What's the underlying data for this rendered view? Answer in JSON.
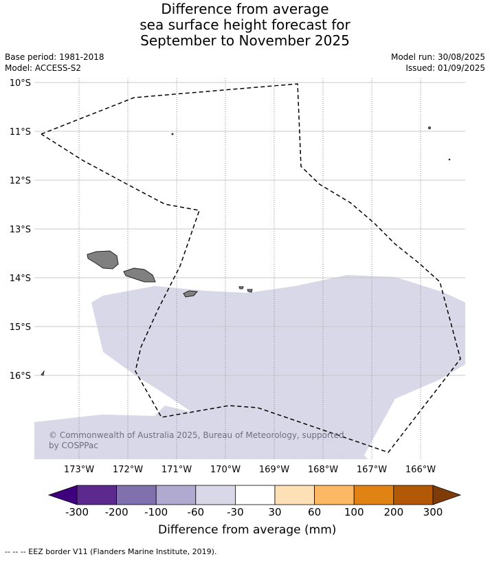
{
  "title": {
    "line1": "Difference from average",
    "line2": "sea surface height forecast for",
    "line3": "September to November 2025"
  },
  "meta_left": {
    "base_period": "Base period: 1981-2018",
    "model": "Model: ACCESS-S2"
  },
  "meta_right": {
    "model_run": "Model run: 30/08/2025",
    "issued": "Issued: 01/09/2025"
  },
  "map": {
    "lat_labels": [
      "10°S",
      "11°S",
      "12°S",
      "13°S",
      "14°S",
      "15°S",
      "16°S"
    ],
    "lon_labels": [
      "173°W",
      "172°W",
      "171°W",
      "170°W",
      "169°W",
      "168°W",
      "167°W",
      "166°W"
    ],
    "anomaly_color": "#d8d8e8",
    "land_color": "#808080",
    "copyright": "© Commonwealth of Australia 2025, Bureau of Meteorology, supported by COSPPac"
  },
  "colorbar": {
    "colors": [
      "#3f007d",
      "#5c2a8f",
      "#8071ae",
      "#b1aad0",
      "#d8d8e8",
      "#ffffff",
      "#fee0b6",
      "#fdb863",
      "#e08214",
      "#b35806",
      "#7f3b08"
    ],
    "labels": [
      "-300",
      "-200",
      "-100",
      "-60",
      "-30",
      "30",
      "60",
      "100",
      "200",
      "300"
    ],
    "title": "Difference from average (mm)"
  },
  "footnote": "-- -- -- EEZ border V11 (Flanders Marine Institute, 2019)."
}
